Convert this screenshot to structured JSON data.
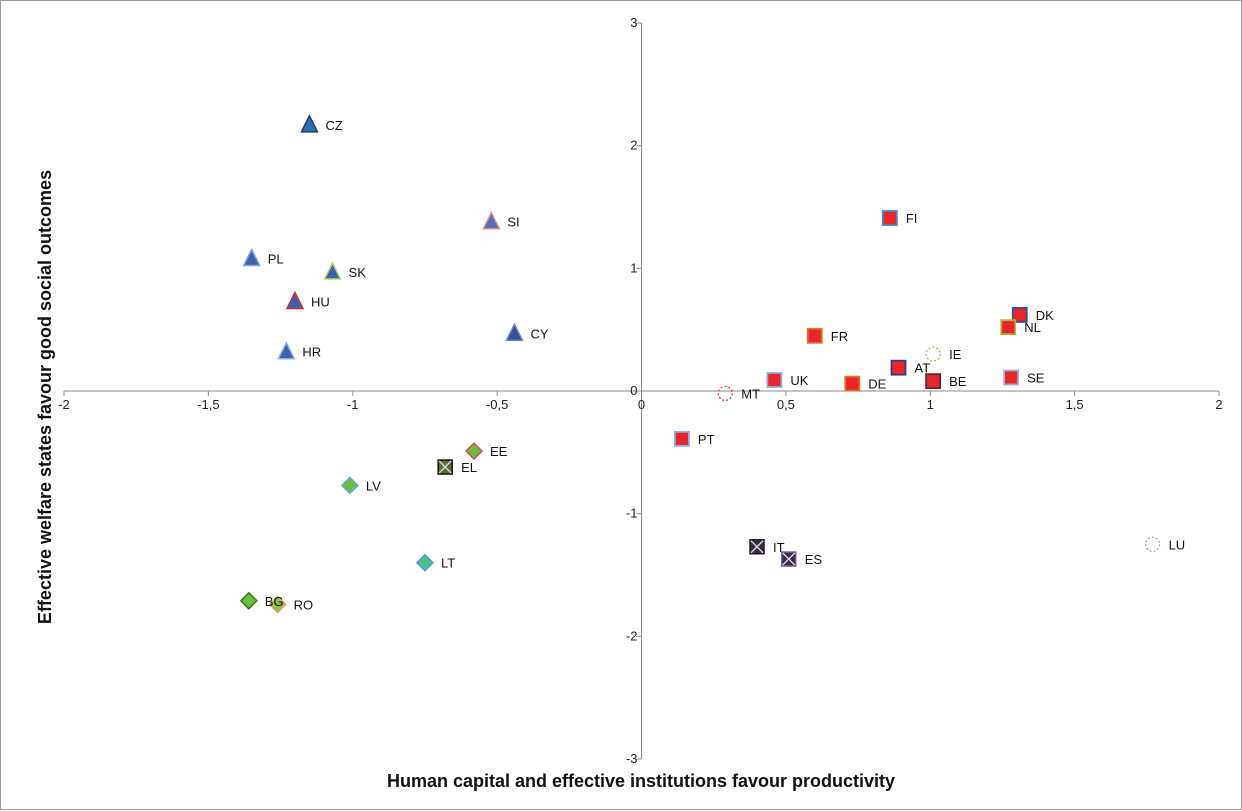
{
  "chart_data": {
    "type": "scatter",
    "title": "",
    "xlabel": "Human capital and effective institutions favour productivity",
    "ylabel": "Effective welfare states favour good social outcomes",
    "xlim": [
      -2,
      2
    ],
    "ylim": [
      -3,
      3
    ],
    "grid": false,
    "x_ticks": [
      -2,
      -1.5,
      -1,
      -0.5,
      0,
      0.5,
      1,
      1.5,
      2
    ],
    "x_tick_labels": [
      "-2",
      "-1,5",
      "-1",
      "-0,5",
      "0",
      "0,5",
      "1",
      "1,5",
      "2"
    ],
    "y_ticks": [
      -3,
      -2,
      -1,
      0,
      1,
      2,
      3
    ],
    "y_tick_labels": [
      "-3",
      "-2",
      "-1",
      "0",
      "1",
      "2",
      "3"
    ],
    "points": [
      {
        "label": "CZ",
        "x": -1.15,
        "y": 2.17,
        "marker": "triangle",
        "fill": "#2e6fb5",
        "stroke": "#1f3f73"
      },
      {
        "label": "SI",
        "x": -0.52,
        "y": 1.38,
        "marker": "triangle",
        "fill": "#4f6fb8",
        "stroke": "#f08a8a"
      },
      {
        "label": "PL",
        "x": -1.35,
        "y": 1.08,
        "marker": "triangle",
        "fill": "#3f5fb0",
        "stroke": "#7f9fd8"
      },
      {
        "label": "SK",
        "x": -1.07,
        "y": 0.97,
        "marker": "triangle",
        "fill": "#3f5fb0",
        "stroke": "#b8d86a"
      },
      {
        "label": "HU",
        "x": -1.2,
        "y": 0.73,
        "marker": "triangle",
        "fill": "#3f5fb0",
        "stroke": "#d23030"
      },
      {
        "label": "CY",
        "x": -0.44,
        "y": 0.47,
        "marker": "triangle",
        "fill": "#35509e",
        "stroke": "#6e86c8"
      },
      {
        "label": "HR",
        "x": -1.23,
        "y": 0.32,
        "marker": "triangle",
        "fill": "#3f5fb0",
        "stroke": "#8fb0e0"
      },
      {
        "label": "EE",
        "x": -0.58,
        "y": -0.49,
        "marker": "diamond",
        "fill": "#6abf3a",
        "stroke": "#d65050"
      },
      {
        "label": "EL",
        "x": -0.68,
        "y": -0.62,
        "marker": "xbox",
        "fill": "#55702e",
        "stroke": "#111111"
      },
      {
        "label": "LV",
        "x": -1.01,
        "y": -0.77,
        "marker": "diamond",
        "fill": "#6abf3a",
        "stroke": "#6aa8e0"
      },
      {
        "label": "LT",
        "x": -0.75,
        "y": -1.4,
        "marker": "diamond",
        "fill": "#4fbf80",
        "stroke": "#40a0e0"
      },
      {
        "label": "BG",
        "x": -1.36,
        "y": -1.71,
        "marker": "diamond",
        "fill": "#6abf3a",
        "stroke": "#3a7020"
      },
      {
        "label": "RO",
        "x": -1.26,
        "y": -1.74,
        "marker": "diamond",
        "fill": "#8fc040",
        "stroke": "#e0a070"
      },
      {
        "label": "FI",
        "x": 0.86,
        "y": 1.41,
        "marker": "square",
        "fill": "#e8262a",
        "stroke": "#4a86c8"
      },
      {
        "label": "DK",
        "x": 1.31,
        "y": 0.62,
        "marker": "square",
        "fill": "#e8262a",
        "stroke": "#3050a0"
      },
      {
        "label": "NL",
        "x": 1.27,
        "y": 0.52,
        "marker": "square",
        "fill": "#e8262a",
        "stroke": "#b8b040"
      },
      {
        "label": "FR",
        "x": 0.6,
        "y": 0.45,
        "marker": "square",
        "fill": "#e8262a",
        "stroke": "#e07020"
      },
      {
        "label": "IE",
        "x": 1.01,
        "y": 0.3,
        "marker": "dashcircle",
        "fill": "none",
        "stroke": "#9ab840"
      },
      {
        "label": "AT",
        "x": 0.89,
        "y": 0.19,
        "marker": "square",
        "fill": "#e8262a",
        "stroke": "#303a90"
      },
      {
        "label": "UK",
        "x": 0.46,
        "y": 0.09,
        "marker": "square",
        "fill": "#e8262a",
        "stroke": "#8fb0e0"
      },
      {
        "label": "SE",
        "x": 1.28,
        "y": 0.11,
        "marker": "square",
        "fill": "#e8262a",
        "stroke": "#9fb0e0"
      },
      {
        "label": "BE",
        "x": 1.01,
        "y": 0.08,
        "marker": "square",
        "fill": "#e8262a",
        "stroke": "#5a2a30"
      },
      {
        "label": "DE",
        "x": 0.73,
        "y": 0.06,
        "marker": "square",
        "fill": "#e8262a",
        "stroke": "#e07020"
      },
      {
        "label": "MT",
        "x": 0.29,
        "y": -0.02,
        "marker": "dashcircle",
        "fill": "none",
        "stroke": "#d83030"
      },
      {
        "label": "PT",
        "x": 0.14,
        "y": -0.39,
        "marker": "square",
        "fill": "#e8262a",
        "stroke": "#8fb0e0"
      },
      {
        "label": "IT",
        "x": 0.4,
        "y": -1.27,
        "marker": "xbox",
        "fill": "#3a2a4a",
        "stroke": "#222222"
      },
      {
        "label": "ES",
        "x": 0.51,
        "y": -1.37,
        "marker": "xbox",
        "fill": "#3a2a4a",
        "stroke": "#7a5a9a"
      },
      {
        "label": "LU",
        "x": 1.77,
        "y": -1.25,
        "marker": "dashcircle",
        "fill": "none",
        "stroke": "#9a9a9a"
      }
    ]
  }
}
